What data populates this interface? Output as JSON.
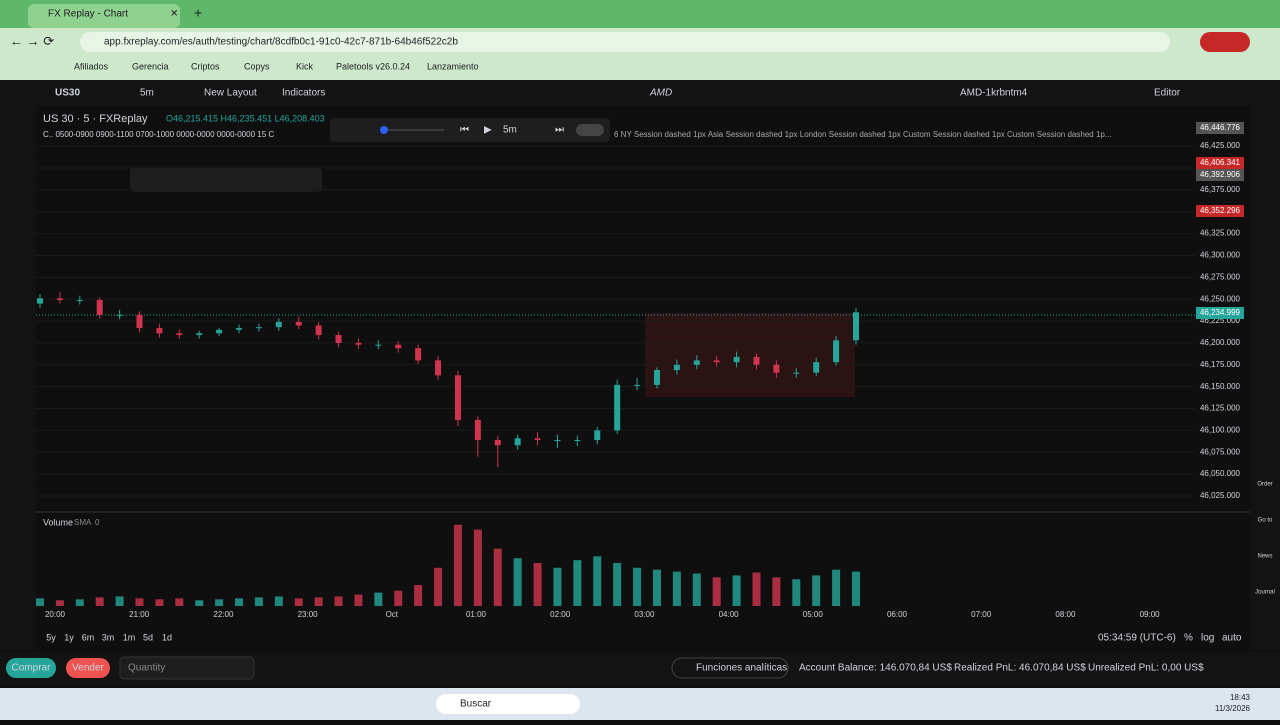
{
  "browser": {
    "tab_title": "FX Replay - Chart",
    "url": "app.fxreplay.com/es/auth/testing/chart/8cdfb0c1-91c0-42c7-871b-64b46f522c2b",
    "bookmarks": [
      "Afiliados",
      "Gerencia",
      "Criptos",
      "Copys",
      "Kick",
      "Paletools v26.0.24",
      "Lanzamiento"
    ]
  },
  "toolbar": {
    "symbol": "US30",
    "interval": "5m",
    "layout": "New Layout",
    "indicators": "Indicators",
    "center": "AMD",
    "account": "AMD-1krbntm4",
    "editor": "Editor"
  },
  "legend": {
    "symbol_title": "US 30 · 5 · FXReplay",
    "ohlc": "O46,215.415 H46,235.451 L46,208.403",
    "sessions": "C.. 0500-0900 0900-1100 0700-1000 0000-0000 0000-0000 15 C",
    "session_text": "6 NY Session dashed 1px Asia Session dashed 1px London Session dashed 1px Custom Session dashed 1px Custom Session dashed 1p..."
  },
  "replay": {
    "interval": "5m"
  },
  "chart_data": {
    "type": "candlestick",
    "open": [
      46245,
      46251,
      46249,
      46249,
      46232,
      46232,
      46217,
      46211,
      46209,
      46211,
      46215,
      46217,
      46218,
      46224,
      46220,
      46209,
      46200,
      46198,
      46198,
      46194,
      46180,
      46163,
      46112,
      46089,
      46083,
      46091,
      46089,
      46089,
      46089,
      46100,
      46152,
      46152,
      46169,
      46175,
      46180,
      46178,
      46184,
      46175,
      46166,
      46166,
      46178,
      46203
    ],
    "high": [
      46256,
      46258,
      46254,
      46252,
      46238,
      46236,
      46222,
      46215,
      46214,
      46217,
      46221,
      46222,
      46228,
      46230,
      46224,
      46213,
      46205,
      46203,
      46202,
      46198,
      46185,
      46168,
      46116,
      46094,
      46095,
      46098,
      46095,
      46094,
      46104,
      46158,
      46160,
      46172,
      46181,
      46186,
      46185,
      46190,
      46188,
      46180,
      46171,
      46183,
      46208,
      46240
    ],
    "low": [
      46240,
      46245,
      46244,
      46228,
      46227,
      46212,
      46206,
      46205,
      46205,
      46208,
      46211,
      46213,
      46214,
      46216,
      46204,
      46195,
      46193,
      46193,
      46189,
      46176,
      46158,
      46105,
      46070,
      46058,
      46078,
      46083,
      46080,
      46082,
      46084,
      46096,
      46146,
      46148,
      46164,
      46170,
      46173,
      46172,
      46170,
      46160,
      46160,
      46162,
      46174,
      46198
    ],
    "close": [
      46251,
      46249,
      46249,
      46232,
      46232,
      46217,
      46211,
      46209,
      46211,
      46215,
      46217,
      46218,
      46224,
      46220,
      46209,
      46200,
      46198,
      46198,
      46194,
      46180,
      46163,
      46112,
      46089,
      46083,
      46091,
      46089,
      46089,
      46089,
      46100,
      46152,
      46152,
      46169,
      46175,
      46180,
      46178,
      46184,
      46175,
      46166,
      46166,
      46178,
      46203,
      46235
    ],
    "volume": [
      8,
      6,
      7,
      9,
      10,
      8,
      7,
      8,
      6,
      7,
      8,
      9,
      10,
      8,
      9,
      10,
      12,
      14,
      16,
      22,
      40,
      85,
      80,
      60,
      50,
      45,
      40,
      48,
      52,
      45,
      40,
      38,
      36,
      34,
      30,
      32,
      35,
      30,
      28,
      32,
      38,
      36
    ],
    "volume_lim": [
      0,
      90
    ],
    "ylim": [
      46009,
      46464
    ],
    "yticks": [
      {
        "value": 46025,
        "label": "46,025.000"
      },
      {
        "value": 46050,
        "label": "46,050.000"
      },
      {
        "value": 46075,
        "label": "46,075.000"
      },
      {
        "value": 46100,
        "label": "46,100.000"
      },
      {
        "value": 46125,
        "label": "46,125.000"
      },
      {
        "value": 46150,
        "label": "46,150.000"
      },
      {
        "value": 46175,
        "label": "46,175.000"
      },
      {
        "value": 46200,
        "label": "46,200.000"
      },
      {
        "value": 46225,
        "label": "46,225.000"
      },
      {
        "value": 46250,
        "label": "46,250.000"
      },
      {
        "value": 46275,
        "label": "46,275.000"
      },
      {
        "value": 46300,
        "label": "46,300.000"
      },
      {
        "value": 46325,
        "label": "46,325.000"
      },
      {
        "value": 46350,
        "label": "46,350.000"
      },
      {
        "value": 46375,
        "label": "46,375.000"
      },
      {
        "value": 46400,
        "label": "46,400.000"
      },
      {
        "value": 46425,
        "label": "46,425.000"
      }
    ],
    "x_labels": [
      "20:00",
      "21:00",
      "22:00",
      "23:00",
      "Oct",
      "01:00",
      "02:00",
      "03:00",
      "04:00",
      "05:00",
      "06:00",
      "07:00",
      "08:00",
      "09:00"
    ],
    "price_badges": [
      "46,446.776",
      "46,406.341",
      "46,392.906",
      "46,352.296",
      "46,234.999"
    ],
    "volume_label": "Volume",
    "volume_sma": "SMA",
    "volume_value": "0"
  },
  "bottom": {
    "ranges": [
      "5y",
      "1y",
      "6m",
      "3m",
      "1m",
      "5d",
      "1d"
    ],
    "clock": "05:34:59 (UTC-6)",
    "pct": "%",
    "log": "log",
    "auto": "auto"
  },
  "trade": {
    "buy": "Comprar",
    "sell": "Vender",
    "quantity": "Quantity",
    "analytics": "Funciones analíticas",
    "balance": "Account Balance: 146.070,84 US$",
    "realized": "Realized PnL: 46.070,84 US$",
    "unrealized": "Unrealized PnL: 0,00 US$"
  },
  "right_panel": [
    "Order",
    "Go to",
    "News",
    "Journal"
  ],
  "taskbar": {
    "search": "Buscar",
    "time": "18:43",
    "date": "11/3/2026"
  }
}
